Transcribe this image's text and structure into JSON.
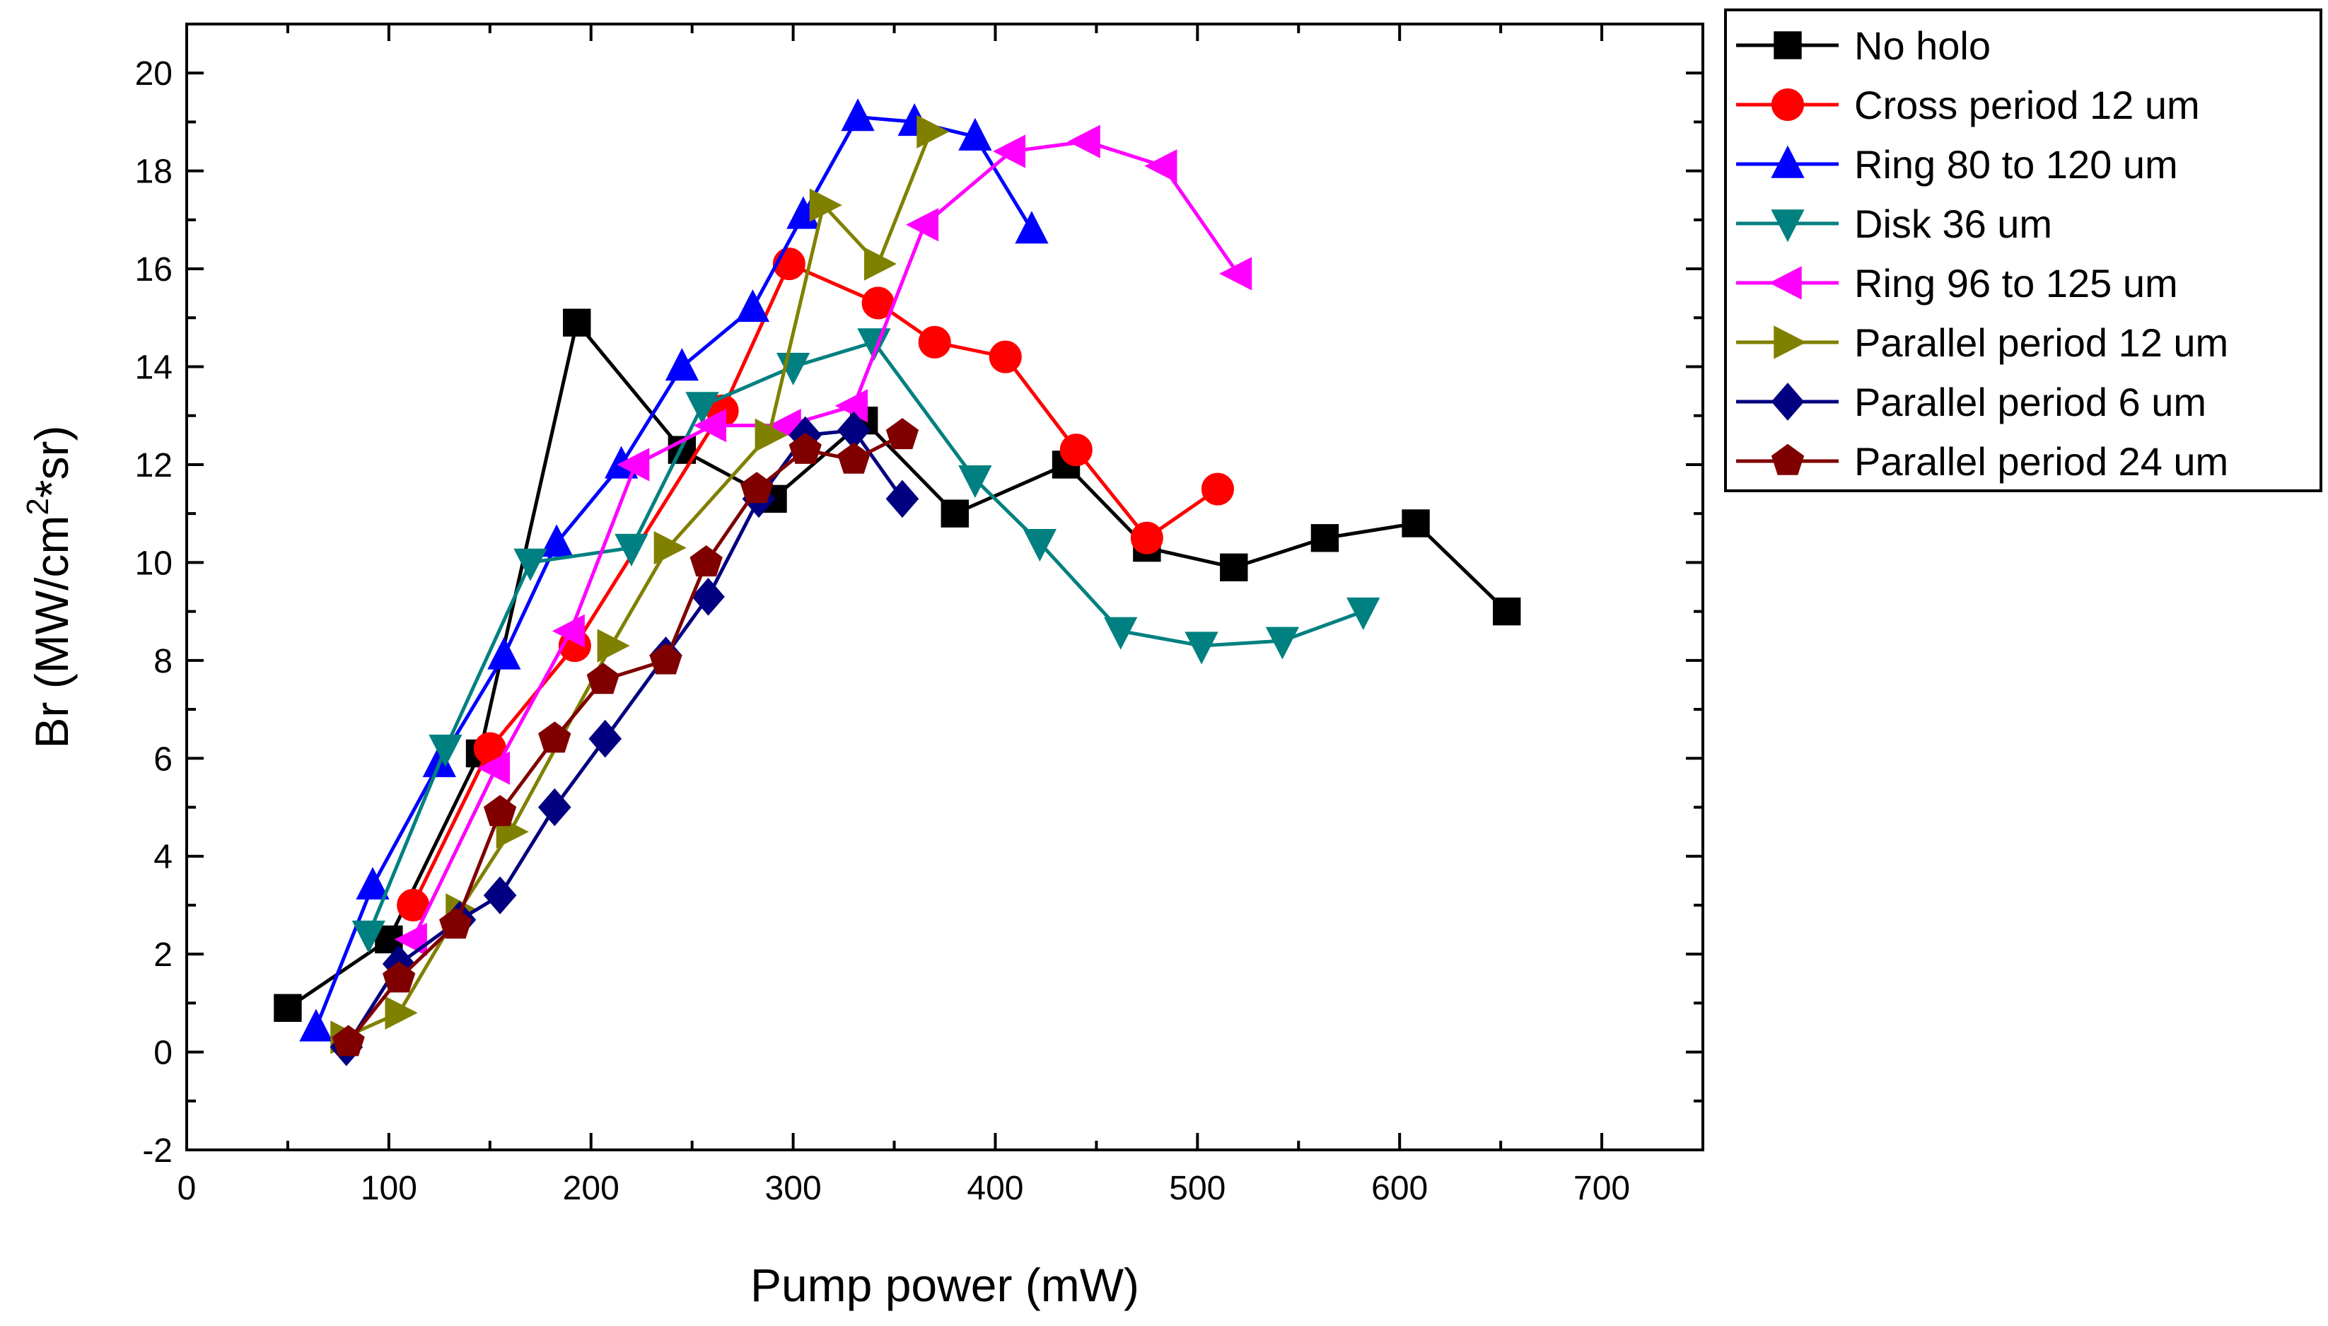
{
  "chart_data": {
    "type": "line",
    "title": "",
    "xlabel": "Pump power (mW)",
    "ylabel_parts": {
      "main": "Br (MW/cm",
      "sup": "2",
      "tail": "*sr)"
    },
    "xlim": [
      0,
      750
    ],
    "ylim": [
      -2,
      21
    ],
    "x_ticks": [
      0,
      100,
      200,
      300,
      400,
      500,
      600,
      700
    ],
    "y_ticks": [
      -2,
      0,
      2,
      4,
      6,
      8,
      10,
      12,
      14,
      16,
      18,
      20
    ],
    "grid": false,
    "legend_position": "top-right, outside plot",
    "series": [
      {
        "name": "No holo",
        "marker": "square",
        "color": "#000000",
        "x": [
          50,
          100,
          145,
          193,
          245,
          290,
          335,
          380,
          435,
          475,
          518,
          563,
          608,
          653
        ],
        "y": [
          0.9,
          2.3,
          6.1,
          14.9,
          12.3,
          11.3,
          12.9,
          11.0,
          12.0,
          10.3,
          9.9,
          10.5,
          10.8,
          9.0
        ]
      },
      {
        "name": "Cross period 12 um",
        "marker": "circle",
        "color": "#ff0000",
        "x": [
          112,
          150,
          192,
          265,
          298,
          342,
          370,
          405,
          440,
          475,
          510
        ],
        "y": [
          3.0,
          6.2,
          8.3,
          13.1,
          16.1,
          15.3,
          14.5,
          14.2,
          12.3,
          10.5,
          11.5
        ]
      },
      {
        "name": "Ring 80 to 120 um",
        "marker": "triangle-up",
        "color": "#0000ff",
        "x": [
          64,
          92,
          125,
          157,
          183,
          215,
          245,
          280,
          305,
          332,
          360,
          390,
          418
        ],
        "y": [
          0.5,
          3.4,
          5.9,
          8.1,
          10.4,
          12.0,
          14.0,
          15.2,
          17.1,
          19.1,
          19.0,
          18.7,
          16.8
        ]
      },
      {
        "name": "Disk 36 um",
        "marker": "triangle-down",
        "color": "#008080",
        "x": [
          90,
          128,
          170,
          220,
          255,
          300,
          340,
          390,
          422,
          462,
          502,
          542,
          582
        ],
        "y": [
          2.4,
          6.2,
          10.0,
          10.3,
          13.2,
          14.0,
          14.5,
          11.7,
          10.4,
          8.6,
          8.3,
          8.4,
          9.0
        ]
      },
      {
        "name": "Ring 96 to 125 um",
        "marker": "triangle-left",
        "color": "#ff00ff",
        "x": [
          112,
          153,
          190,
          222,
          260,
          297,
          330,
          365,
          408,
          445,
          483,
          520
        ],
        "y": [
          2.3,
          5.8,
          8.6,
          12.0,
          12.8,
          12.8,
          13.2,
          16.9,
          18.4,
          18.6,
          18.1,
          15.9
        ]
      },
      {
        "name": "Parallel period 12 um",
        "marker": "triangle-right",
        "color": "#808000",
        "x": [
          78,
          105,
          135,
          160,
          210,
          238,
          288,
          315,
          342,
          368
        ],
        "y": [
          0.3,
          0.8,
          2.9,
          4.5,
          8.3,
          10.3,
          12.6,
          17.3,
          16.1,
          18.8
        ]
      },
      {
        "name": "Parallel period 6 um",
        "marker": "diamond",
        "color": "#000080",
        "x": [
          79,
          105,
          135,
          155,
          182,
          207,
          237,
          258,
          283,
          306,
          330,
          354
        ],
        "y": [
          0.1,
          1.8,
          2.7,
          3.2,
          5.0,
          6.4,
          8.1,
          9.3,
          11.3,
          12.6,
          12.7,
          11.3
        ]
      },
      {
        "name": "Parallel period 24 um",
        "marker": "pentagon",
        "color": "#800000",
        "x": [
          80,
          105,
          133,
          155,
          182,
          206,
          237,
          257,
          282,
          306,
          330,
          354
        ],
        "y": [
          0.2,
          1.5,
          2.6,
          4.9,
          6.4,
          7.6,
          8.0,
          10.0,
          11.5,
          12.3,
          12.1,
          12.6
        ]
      }
    ]
  }
}
